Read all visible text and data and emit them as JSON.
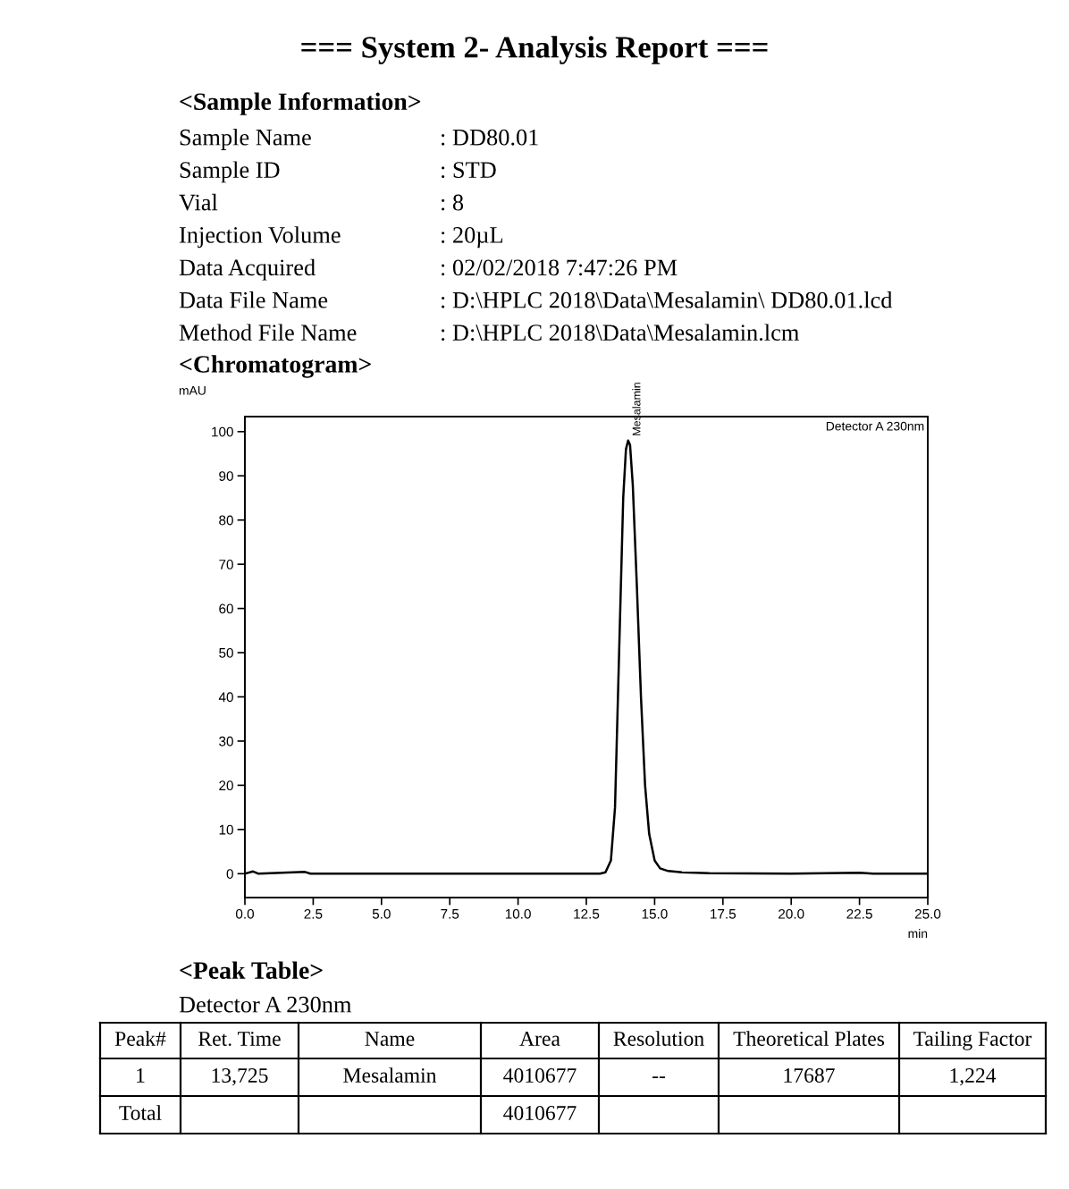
{
  "chart_data": {
    "type": "line",
    "title": "=== System 2- Analysis Report ===",
    "subtitle": "<Chromatogram>",
    "xlabel": "min",
    "ylabel": "mAU",
    "x": [
      0,
      0.3,
      0.5,
      2.2,
      2.4,
      13.0,
      13.2,
      13.4,
      13.55,
      13.7,
      13.85,
      13.95,
      14.03,
      14.1,
      14.2,
      14.35,
      14.5,
      14.65,
      14.8,
      15.0,
      15.2,
      15.5,
      16.0,
      17.0,
      20.0,
      22.5,
      23.0,
      25.0
    ],
    "series": [
      {
        "color": "#000000",
        "values": [
          0,
          0.5,
          0,
          0.4,
          0,
          0,
          0.3,
          3,
          15,
          50,
          85,
          96,
          98,
          97,
          88,
          65,
          40,
          20,
          9,
          3,
          1.2,
          0.6,
          0.3,
          0.1,
          0,
          0.2,
          0,
          0
        ]
      }
    ],
    "xlim": [
      0,
      25
    ],
    "ylim": [
      -5.4,
      103.4
    ],
    "xticks": [
      {
        "value": 0,
        "label": "0.0"
      },
      {
        "value": 2.5,
        "label": "2.5"
      },
      {
        "value": 5,
        "label": "5.0"
      },
      {
        "value": 7.5,
        "label": "7.5"
      },
      {
        "value": 10,
        "label": "10.0"
      },
      {
        "value": 12.5,
        "label": "12.5"
      },
      {
        "value": 15,
        "label": "15.0"
      },
      {
        "value": 17.5,
        "label": "17.5"
      },
      {
        "value": 20,
        "label": "20.0"
      },
      {
        "value": 22.5,
        "label": "22.5"
      },
      {
        "value": 25,
        "label": "25.0"
      }
    ],
    "yticks": [
      0,
      10,
      20,
      30,
      40,
      50,
      60,
      70,
      80,
      90,
      100
    ],
    "grid": false,
    "legend": false,
    "marker": "none",
    "line_style": "solid",
    "annotations": [
      {
        "text": "Mesalamin",
        "x": 14.03,
        "y": 98
      },
      "Detector A 230nm",
      "<Sample Information>",
      "Sample Name : DD80.01",
      "Sample ID : STD",
      "Vial : 8",
      "Injection Volume : 20µL",
      "Data Acquired : 02/02/2018 7:47:26 PM",
      "Data File Name : D:\\HPLC 2018\\Data\\Mesalamin\\ DD80.01.lcd",
      "Method File Name : D:\\HPLC 2018\\Data\\Mesalamin.lcm",
      "<Peak Table>",
      "Detector A 230nm",
      "Peak#",
      "Ret. Time",
      "Name",
      "Area",
      "Resolution",
      "Theoretical Plates",
      "Tailing Factor",
      "1",
      "13,725",
      "Mesalamin",
      "4010677",
      "--",
      "17687",
      "1,224",
      "Total",
      "4010677"
    ]
  }
}
